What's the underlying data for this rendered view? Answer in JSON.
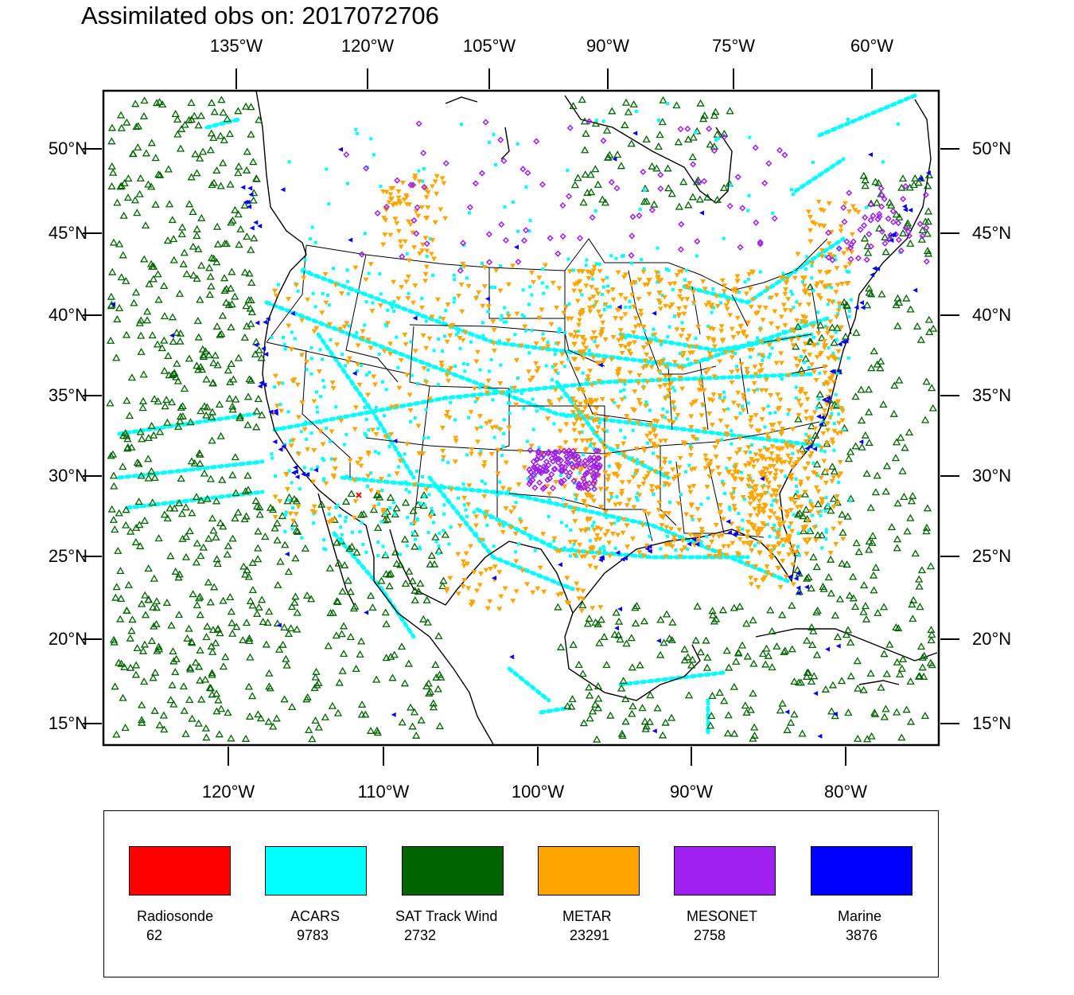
{
  "title": "Assimilated obs on: 2017072706",
  "top_ticks": [
    "135°W",
    "120°W",
    "105°W",
    "90°W",
    "75°W",
    "60°W"
  ],
  "bottom_ticks": [
    "120°W",
    "110°W",
    "100°W",
    "90°W",
    "80°W"
  ],
  "lat_ticks": [
    "50°N",
    "45°N",
    "40°N",
    "35°N",
    "30°N",
    "25°N",
    "20°N",
    "15°N"
  ],
  "colors": {
    "radiosonde": "#ff0000",
    "acars": "#00ffff",
    "sat_track_wind": "#006400",
    "metar": "#ffa500",
    "mesonet": "#a020f0",
    "marine": "#0000ff",
    "coast": "#000000"
  },
  "legend": [
    {
      "label": "Radiosonde",
      "count": "62",
      "color": "#ff0000"
    },
    {
      "label": "ACARS",
      "count": "9783",
      "color": "#00ffff"
    },
    {
      "label": "SAT Track Wind",
      "count": "2732",
      "color": "#006400"
    },
    {
      "label": "METAR",
      "count": "23291",
      "color": "#ffa500"
    },
    {
      "label": "MESONET",
      "count": "2758",
      "color": "#a020f0"
    },
    {
      "label": "Marine",
      "count": "3876",
      "color": "#0000ff"
    }
  ]
}
